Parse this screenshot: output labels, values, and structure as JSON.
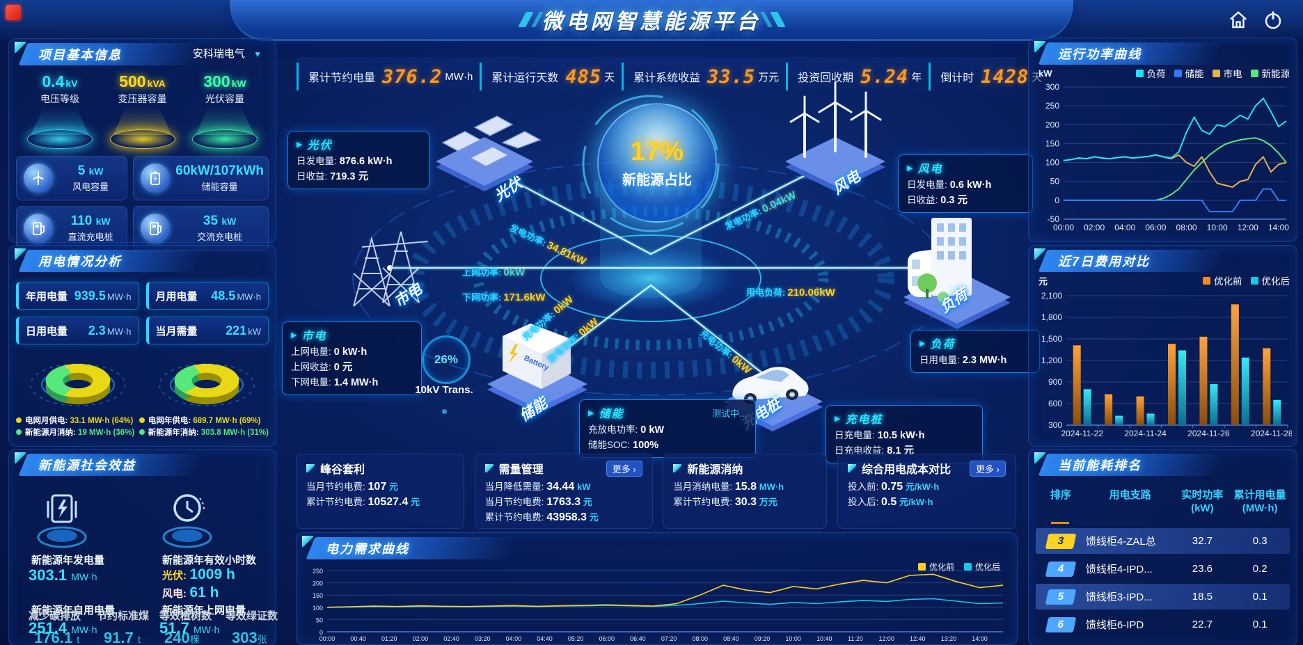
{
  "header": {
    "title": "微电网智慧能源平台"
  },
  "kpi_bar": [
    {
      "label": "累计节约电量",
      "value": "376.2",
      "unit": "MW·h"
    },
    {
      "label": "累计运行天数",
      "value": "485",
      "unit": "天"
    },
    {
      "label": "累计系统收益",
      "value": "33.5",
      "unit": "万元"
    },
    {
      "label": "投资回收期",
      "value": "5.24",
      "unit": "年"
    },
    {
      "label": "倒计时",
      "value": "1428",
      "unit": "天"
    }
  ],
  "project_info": {
    "title": "项目基本信息",
    "dropdown": "安科瑞电气",
    "pedestals": [
      {
        "value": "0.4",
        "unit": "kV",
        "label": "电压等级",
        "color": "#35e0ff"
      },
      {
        "value": "500",
        "unit": "kVA",
        "label": "变压器容量",
        "color": "#ffd921"
      },
      {
        "value": "300",
        "unit": "kW",
        "label": "光伏容量",
        "color": "#3fffa8"
      }
    ],
    "cards": [
      {
        "value": "5",
        "unit": "kW",
        "label": "风电容量",
        "icon": "wind-turbine-icon"
      },
      {
        "value": "60kW/107kWh",
        "unit": "",
        "label": "储能容量",
        "icon": "battery-icon"
      },
      {
        "value": "110",
        "unit": "kW",
        "label": "直流充电桩",
        "icon": "charger-icon"
      },
      {
        "value": "35",
        "unit": "kW",
        "label": "交流充电桩",
        "icon": "charger-icon"
      }
    ]
  },
  "usage_analysis": {
    "title": "用电情况分析",
    "stats": [
      {
        "label": "年用电量",
        "value": "939.5",
        "unit": "MW·h"
      },
      {
        "label": "月用电量",
        "value": "48.5",
        "unit": "MW·h"
      },
      {
        "label": "日用电量",
        "value": "2.3",
        "unit": "MW·h"
      },
      {
        "label": "当月需量",
        "value": "221",
        "unit": "kW"
      }
    ]
  },
  "benefit": {
    "title": "新能源社会效益",
    "items": [
      {
        "label": "新能源年发电量",
        "value": "303.1",
        "unit": "MW·h"
      },
      {
        "label": "新能源年有效小时数",
        "sub": [
          {
            "label": "光伏:",
            "value": "1009 h"
          },
          {
            "label": "风电:",
            "value": "61 h"
          }
        ]
      },
      {
        "label": "新能源年自用电量",
        "value": "251.4",
        "unit": "MW·h"
      },
      {
        "label": "新能源年上网电量",
        "value": "51.7",
        "unit": "MW·h"
      },
      {
        "label": "减少碳排放",
        "value": "176.1",
        "unit": "t"
      },
      {
        "label": "节约标准煤",
        "value": "91.7",
        "unit": "t"
      },
      {
        "label": "等效植树数",
        "value": "240",
        "unit": "棵"
      },
      {
        "label": "等效绿证数",
        "value": "303",
        "unit": "张"
      }
    ]
  },
  "scene": {
    "center_value": "17%",
    "center_label": "新能源占比",
    "transformer_pct": "26%",
    "transformer_label": "10kV Trans.",
    "battery_text": "Battery",
    "devices": [
      {
        "name": "光伏"
      },
      {
        "name": "风电"
      },
      {
        "name": "市电"
      },
      {
        "name": "负荷"
      },
      {
        "name": "储能"
      },
      {
        "name": "充电桩"
      }
    ],
    "flows": [
      {
        "label": "发电功率:",
        "value": "34.81kW",
        "color": "#ffd21f"
      },
      {
        "label": "上网功率:",
        "value": "0kW",
        "color": "#2fe2ff"
      },
      {
        "label": "下网功率:",
        "value": "171.6kW",
        "color": "#ffd21f"
      },
      {
        "label": "发电功率:",
        "value": "0.04kW",
        "color": "#2fe2ff"
      },
      {
        "label": "用电负荷:",
        "value": "210.06kW",
        "color": "#ffd21f"
      },
      {
        "label": "充电功率:",
        "value": "0kW",
        "color": "#ffd21f"
      },
      {
        "label": "放电功率:",
        "value": "0kW",
        "color": "#ffd21f"
      },
      {
        "label": "充电功率:",
        "value": "0kW",
        "color": "#ffd21f"
      }
    ],
    "info_boxes": {
      "pv": {
        "title": "光伏",
        "lines": [
          {
            "label": "日发电量:",
            "value": "876.6 kW·h"
          },
          {
            "label": "日收益:",
            "value": "719.3 元"
          }
        ]
      },
      "wind": {
        "title": "风电",
        "lines": [
          {
            "label": "日发电量:",
            "value": "0.6 kW·h"
          },
          {
            "label": "日收益:",
            "value": "0.3 元"
          }
        ]
      },
      "grid": {
        "title": "市电",
        "lines": [
          {
            "label": "上网电量:",
            "value": "0 kW·h"
          },
          {
            "label": "上网收益:",
            "value": "0 元"
          },
          {
            "label": "下网电量:",
            "value": "1.4 MW·h"
          }
        ]
      },
      "storage": {
        "title": "储能",
        "status": "测试中...",
        "lines": [
          {
            "label": "充放电功率:",
            "value": "0 kW"
          },
          {
            "label": "储能SOC:",
            "value": "100%"
          }
        ]
      },
      "load": {
        "title": "负荷",
        "lines": [
          {
            "label": "日用电量:",
            "value": "2.3 MW·h"
          }
        ]
      },
      "charger": {
        "title": "充电桩",
        "lines": [
          {
            "label": "日充电量:",
            "value": "10.5 kW·h"
          },
          {
            "label": "日充电收益:",
            "value": "8.1 元"
          }
        ]
      }
    }
  },
  "optimization_cards": [
    {
      "title": "峰谷套利",
      "more": false,
      "lines": [
        {
          "label": "当月节约电费:",
          "value": "107",
          "unit": "元"
        },
        {
          "label": "累计节约电费:",
          "value": "10527.4",
          "unit": "元"
        }
      ]
    },
    {
      "title": "需量管理",
      "more": true,
      "lines": [
        {
          "label": "当月降低需量:",
          "value": "34.44",
          "unit": "kW"
        },
        {
          "label": "当月节约电费:",
          "value": "1763.3",
          "unit": "元"
        },
        {
          "label": "累计节约电费:",
          "value": "43958.3",
          "unit": "元"
        }
      ]
    },
    {
      "title": "新能源消纳",
      "more": false,
      "lines": [
        {
          "label": "当月消纳电量:",
          "value": "15.8",
          "unit": "MW·h"
        },
        {
          "label": "累计节约电费:",
          "value": "30.3",
          "unit": "万元"
        }
      ]
    },
    {
      "title": "综合用电成本对比",
      "more": true,
      "lines": [
        {
          "label": "投入前:",
          "value": "0.75",
          "unit": "元/kW·h"
        },
        {
          "label": "投入后:",
          "value": "0.5",
          "unit": "元/kW·h"
        }
      ]
    }
  ],
  "more_label": "更多",
  "ranking": {
    "title": "当前能耗排名",
    "headers": [
      {
        "t": "排序",
        "u": ""
      },
      {
        "t": "用电支路",
        "u": ""
      },
      {
        "t": "实时功率",
        "u": "(kW)"
      },
      {
        "t": "累计用电量",
        "u": "(MW·h)"
      }
    ],
    "rows": [
      {
        "rank": "3",
        "branch": "馈线柜4-ZAL总",
        "power": "32.7",
        "energy": "0.3",
        "highlight": true,
        "rank_color": "#ffd21f"
      },
      {
        "rank": "4",
        "branch": "馈线柜4-IPD...",
        "power": "23.6",
        "energy": "0.2",
        "highlight": false,
        "rank_color": "#4da6ff"
      },
      {
        "rank": "5",
        "branch": "馈线柜3-IPD...",
        "power": "18.5",
        "energy": "0.1",
        "highlight": true,
        "rank_color": "#4da6ff"
      },
      {
        "rank": "6",
        "branch": "馈线柜6-IPD",
        "power": "22.7",
        "energy": "0.1",
        "highlight": false,
        "rank_color": "#4da6ff"
      }
    ]
  },
  "chart_data": [
    {
      "id": "run_power",
      "type": "line",
      "title": "运行功率曲线",
      "unit": "kW",
      "ylim": [
        -50,
        300
      ],
      "yticks": [
        -50,
        0,
        50,
        100,
        150,
        200,
        250,
        300
      ],
      "x_hours": [
        0,
        0.5,
        1,
        1.5,
        2,
        2.5,
        3,
        3.5,
        4,
        4.5,
        5,
        5.5,
        6,
        6.5,
        7,
        7.5,
        8,
        8.5,
        9,
        9.5,
        10,
        10.5,
        11,
        11.5,
        12,
        12.5,
        13,
        13.5,
        14,
        14.5
      ],
      "xticks": [
        "00:00",
        "02:00",
        "04:00",
        "06:00",
        "08:00",
        "10:00",
        "12:00",
        "14:00"
      ],
      "legend_position": "top",
      "grid": true,
      "series": [
        {
          "name": "负荷",
          "color": "#1ee3f7",
          "values": [
            105,
            108,
            112,
            110,
            115,
            112,
            110,
            113,
            115,
            112,
            114,
            116,
            120,
            115,
            112,
            128,
            180,
            220,
            185,
            175,
            200,
            195,
            210,
            225,
            215,
            250,
            270,
            235,
            195,
            210
          ]
        },
        {
          "name": "储能",
          "color": "#2f7df5",
          "values": [
            0,
            0,
            0,
            0,
            0,
            0,
            0,
            0,
            0,
            0,
            0,
            0,
            0,
            0,
            0,
            0,
            0,
            0,
            0,
            -30,
            -30,
            -30,
            -30,
            0,
            0,
            0,
            30,
            30,
            0,
            0
          ]
        },
        {
          "name": "市电",
          "color": "#e8b34b",
          "values": [
            105,
            108,
            112,
            110,
            115,
            112,
            110,
            113,
            115,
            112,
            114,
            116,
            120,
            115,
            110,
            120,
            100,
            90,
            115,
            75,
            45,
            40,
            35,
            50,
            55,
            95,
            115,
            75,
            95,
            100
          ]
        },
        {
          "name": "新能源",
          "color": "#57e87b",
          "values": [
            0,
            0,
            0,
            0,
            0,
            0,
            0,
            0,
            0,
            0,
            0,
            0,
            0,
            5,
            15,
            30,
            55,
            80,
            100,
            120,
            135,
            148,
            155,
            160,
            163,
            165,
            158,
            145,
            125,
            100
          ]
        }
      ]
    },
    {
      "id": "cost_compare",
      "type": "bar",
      "title": "近7日费用对比",
      "unit": "元",
      "ylim": [
        300,
        2100
      ],
      "yticks": [
        300,
        600,
        900,
        1200,
        1500,
        1800,
        2100
      ],
      "categories": [
        "2024-11-22",
        "2024-11-23",
        "2024-11-24",
        "2024-11-25",
        "2024-11-26",
        "2024-11-27",
        "2024-11-28"
      ],
      "xtick_labels": [
        "2024-11-22",
        "2024-11-24",
        "2024-11-26",
        "2024-11-28"
      ],
      "legend_position": "top-right",
      "grid": true,
      "series": [
        {
          "name": "优化前",
          "color": "#f08c1e",
          "values": [
            1410,
            730,
            700,
            1430,
            1530,
            1980,
            1370
          ]
        },
        {
          "name": "优化后",
          "color": "#19c8e6",
          "values": [
            800,
            430,
            460,
            1340,
            870,
            1240,
            650
          ]
        }
      ]
    },
    {
      "id": "demand",
      "type": "line",
      "title": "电力需求曲线",
      "unit": "kW",
      "ylim": [
        0,
        250
      ],
      "yticks": [
        0,
        50,
        100,
        150,
        200,
        250
      ],
      "x_hours": [
        0,
        0.5,
        1,
        1.5,
        2,
        2.5,
        3,
        3.5,
        4,
        4.5,
        5,
        5.5,
        6,
        6.5,
        7,
        7.5,
        8,
        8.5,
        9,
        9.5,
        10,
        10.5,
        11,
        11.5,
        12,
        12.5,
        13,
        13.5,
        14,
        14.5
      ],
      "xticks": [
        "00:00",
        "00:40",
        "01:20",
        "02:00",
        "02:40",
        "03:20",
        "04:00",
        "04:40",
        "05:20",
        "06:00",
        "06:40",
        "07:20",
        "08:00",
        "08:40",
        "09:20",
        "10:00",
        "10:40",
        "11:20",
        "12:00",
        "12:40",
        "13:20",
        "14:00"
      ],
      "legend_position": "top-right",
      "grid": true,
      "series": [
        {
          "name": "优化前",
          "color": "#ffd21f",
          "values": [
            100,
            102,
            105,
            103,
            106,
            104,
            103,
            105,
            107,
            104,
            106,
            108,
            110,
            107,
            105,
            115,
            150,
            190,
            170,
            160,
            185,
            175,
            195,
            210,
            200,
            230,
            235,
            205,
            180,
            190
          ]
        },
        {
          "name": "优化后",
          "color": "#19c8e6",
          "values": [
            100,
            101,
            103,
            102,
            104,
            103,
            102,
            104,
            105,
            103,
            105,
            106,
            108,
            106,
            104,
            108,
            115,
            125,
            118,
            112,
            120,
            115,
            122,
            128,
            124,
            132,
            135,
            125,
            115,
            118
          ]
        }
      ]
    },
    {
      "id": "donut_month",
      "type": "pie",
      "segments": [
        {
          "name": "电网月供电",
          "value": 33.1,
          "unit": "MW·h",
          "pct": "64%",
          "color": "#e8d816"
        },
        {
          "name": "新能源月消纳",
          "value": 19,
          "unit": "MW·h",
          "pct": "36%",
          "color": "#57e87b"
        }
      ]
    },
    {
      "id": "donut_year",
      "type": "pie",
      "segments": [
        {
          "name": "电网年供电",
          "value": 689.7,
          "unit": "MW·h",
          "pct": "69%",
          "color": "#e8d816"
        },
        {
          "name": "新能源年消纳",
          "value": 303.8,
          "unit": "MW·h",
          "pct": "31%",
          "color": "#57e87b"
        }
      ]
    }
  ]
}
